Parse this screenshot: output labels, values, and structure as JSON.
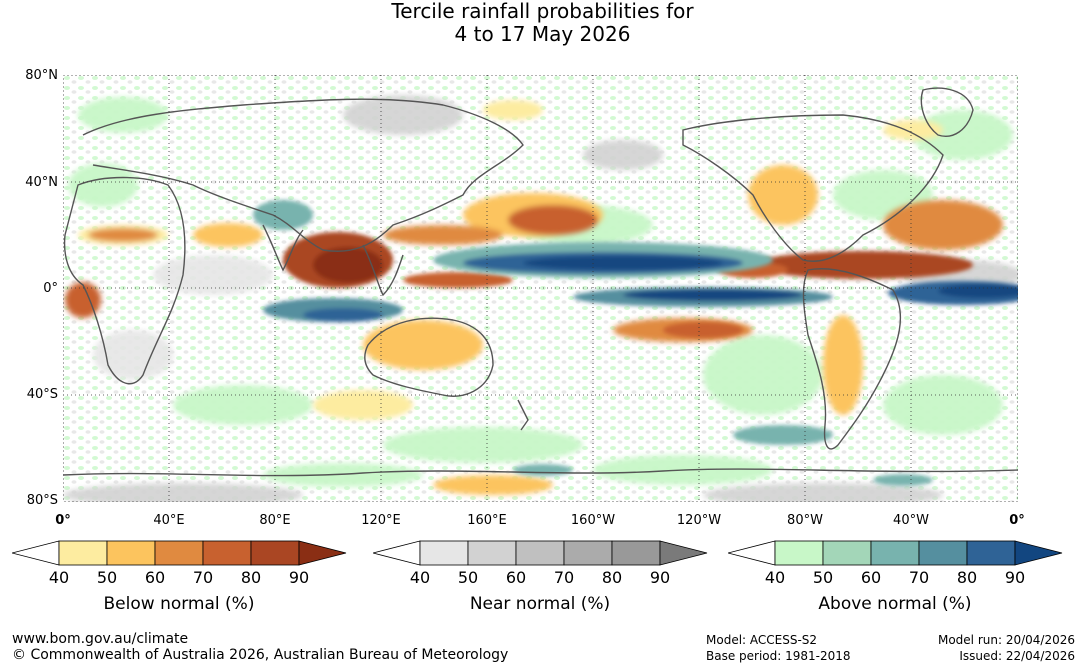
{
  "title": {
    "line1": "Tercile rainfall probabilities for",
    "line2": "4 to 17 May 2026"
  },
  "map": {
    "lat_labels": [
      "80°N",
      "40°N",
      "0°",
      "40°S",
      "80°S"
    ],
    "lon_labels": [
      "0°",
      "40°E",
      "80°E",
      "120°E",
      "160°E",
      "160°W",
      "120°W",
      "80°W",
      "40°W",
      "0°"
    ]
  },
  "legends": [
    {
      "title": "Below normal (%)",
      "ticks": [
        "40",
        "50",
        "60",
        "70",
        "80",
        "90"
      ],
      "colors": [
        "#ffffff",
        "#fdeca0",
        "#fcc45e",
        "#e08a40",
        "#c8612f",
        "#aa4623",
        "#8a2e14"
      ]
    },
    {
      "title": "Near normal (%)",
      "ticks": [
        "40",
        "50",
        "60",
        "70",
        "80",
        "90"
      ],
      "colors": [
        "#ffffff",
        "#e6e6e6",
        "#d2d2d2",
        "#c0c0c0",
        "#ababab",
        "#999999",
        "#7a7a7a"
      ]
    },
    {
      "title": "Above normal (%)",
      "ticks": [
        "40",
        "50",
        "60",
        "70",
        "80",
        "90"
      ],
      "colors": [
        "#ffffff",
        "#c8f7c8",
        "#a3d6b8",
        "#78b3ae",
        "#558f9f",
        "#2f6396",
        "#124680"
      ]
    }
  ],
  "footer": {
    "url": "www.bom.gov.au/climate",
    "copyright": "© Commonwealth of Australia 2026, Australian Bureau of Meteorology",
    "model": "Model: ACCESS-S2",
    "base_period": "Base period: 1981-2018",
    "model_run": "Model run: 20/04/2026",
    "issued": "Issued: 22/04/2026"
  }
}
